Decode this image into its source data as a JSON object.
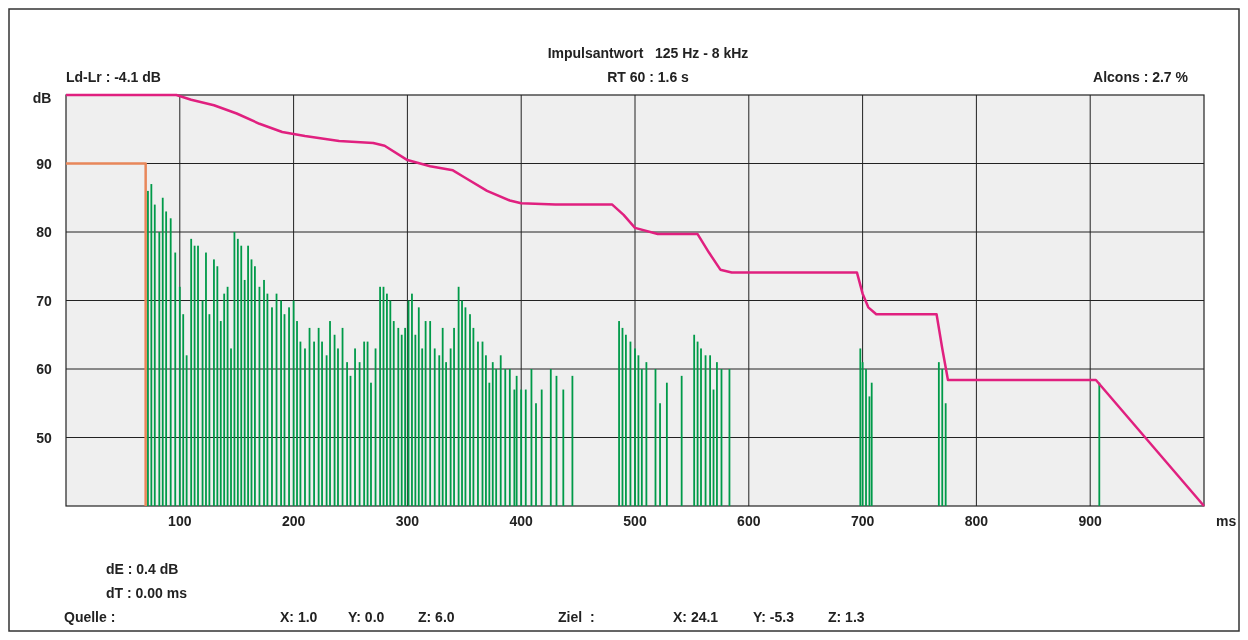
{
  "chart_data": {
    "type": "line",
    "title": "Impulsantwort   125 Hz - 8 kHz",
    "xlabel": "ms",
    "ylabel": "dB",
    "xlim": [
      0,
      1000
    ],
    "ylim": [
      40,
      100
    ],
    "xticks": [
      100,
      200,
      300,
      400,
      500,
      600,
      700,
      800,
      900
    ],
    "yticks": [
      50,
      60,
      70,
      80,
      90
    ],
    "grid": true,
    "annotations": [
      "Ld-Lr : -4.1 dB",
      "RT 60 : 1.6 s",
      "Alcons : 2.7 %",
      "dE : 0.4 dB",
      "dT : 0.00 ms",
      "Quelle :",
      "X: 1.0",
      "Y: 0.0",
      "Z: 6.0",
      "Ziel  :",
      "X: 24.1",
      "Y: -5.3",
      "Z: 1.3"
    ],
    "series": [
      {
        "type": "bar",
        "color": "#009a49",
        "x": [
          72,
          75,
          78,
          82,
          85,
          88,
          92,
          96,
          100,
          103,
          106,
          110,
          113,
          116,
          120,
          123,
          126,
          130,
          133,
          136,
          139,
          142,
          145,
          148,
          151,
          154,
          157,
          160,
          163,
          166,
          170,
          174,
          177,
          181,
          185,
          189,
          192,
          196,
          200,
          203,
          206,
          210,
          214,
          218,
          222,
          225,
          229,
          232,
          236,
          239,
          243,
          247,
          250,
          254,
          258,
          262,
          265,
          268,
          272,
          276,
          279,
          282,
          285,
          288,
          292,
          295,
          298,
          301,
          304,
          307,
          310,
          313,
          316,
          320,
          324,
          328,
          331,
          334,
          338,
          341,
          345,
          348,
          351,
          355,
          358,
          362,
          366,
          369,
          372,
          375,
          378,
          382,
          386,
          390,
          394,
          396,
          400,
          404,
          409,
          413,
          418,
          426,
          431,
          437,
          445,
          486,
          489,
          492,
          496,
          500,
          503,
          506,
          510,
          518,
          522,
          528,
          541,
          552,
          555,
          558,
          562,
          566,
          569,
          572,
          576,
          583,
          698,
          700,
          703,
          706,
          708,
          767,
          770,
          773,
          908
        ],
        "values": [
          86,
          87,
          84,
          80,
          85,
          83,
          82,
          77,
          72,
          68,
          62,
          79,
          78,
          78,
          70,
          77,
          68,
          76,
          75,
          67,
          71,
          72,
          63,
          80,
          79,
          78,
          73,
          78,
          76,
          75,
          72,
          73,
          71,
          69,
          71,
          70,
          68,
          69,
          70,
          67,
          64,
          63,
          66,
          64,
          66,
          64,
          62,
          67,
          65,
          63,
          66,
          61,
          59,
          63,
          61,
          64,
          64,
          58,
          63,
          72,
          72,
          71,
          70,
          67,
          66,
          65,
          66,
          70,
          71,
          65,
          69,
          63,
          67,
          67,
          63,
          62,
          66,
          61,
          63,
          66,
          72,
          70,
          69,
          68,
          66,
          64,
          64,
          62,
          58,
          61,
          60,
          62,
          60,
          60,
          57,
          59,
          57,
          57,
          60,
          55,
          57,
          60,
          59,
          57,
          59,
          67,
          66,
          65,
          64,
          63,
          62,
          60,
          61,
          60,
          55,
          58,
          59,
          65,
          64,
          63,
          62,
          62,
          57,
          61,
          60,
          60,
          63,
          61,
          60,
          56,
          58,
          61,
          60,
          55,
          58
        ]
      },
      {
        "color": "#e8875a",
        "x": [
          0,
          70,
          70
        ],
        "values": [
          90,
          90,
          40
        ]
      },
      {
        "color": "#e0207f",
        "x": [
          0,
          97,
          110,
          130,
          150,
          170,
          190,
          210,
          240,
          270,
          280,
          300,
          320,
          340,
          350,
          370,
          390,
          400,
          430,
          480,
          490,
          500,
          520,
          555,
          565,
          575,
          585,
          695,
          700,
          705,
          712,
          765,
          770,
          775,
          905,
          1000
        ],
        "values": [
          100,
          100,
          99.3,
          98.5,
          97.3,
          95.8,
          94.6,
          94,
          93.3,
          93,
          92.6,
          90.5,
          89.6,
          89,
          88,
          86,
          84.6,
          84.2,
          84,
          84,
          82.5,
          80.6,
          79.7,
          79.7,
          77,
          74.5,
          74.1,
          74.1,
          71,
          69,
          68,
          68,
          63,
          58.4,
          58.4,
          40
        ]
      }
    ]
  }
}
